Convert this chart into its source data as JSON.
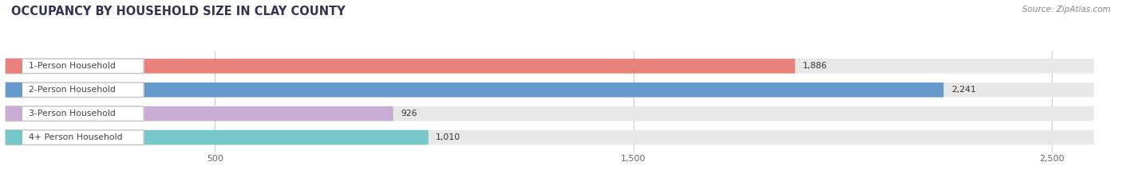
{
  "title": "OCCUPANCY BY HOUSEHOLD SIZE IN CLAY COUNTY",
  "source": "Source: ZipAtlas.com",
  "categories": [
    "1-Person Household",
    "2-Person Household",
    "3-Person Household",
    "4+ Person Household"
  ],
  "values": [
    1886,
    2241,
    926,
    1010
  ],
  "bar_colors": [
    "#e8827a",
    "#6699cc",
    "#c9acd4",
    "#76c8c8"
  ],
  "bg_color": "#e8e8e8",
  "label_bg": "#ffffff",
  "value_labels": [
    "1,886",
    "2,241",
    "926",
    "1,010"
  ],
  "xlim_max": 2600,
  "xticks": [
    500,
    1500,
    2500
  ],
  "xtick_labels": [
    "500",
    "1,500",
    "2,500"
  ],
  "title_fontsize": 10.5,
  "bar_height": 0.62,
  "figsize": [
    14.06,
    2.33
  ],
  "dpi": 100,
  "label_text_colors": [
    "#555555",
    "#555555",
    "#555555",
    "#555555"
  ]
}
